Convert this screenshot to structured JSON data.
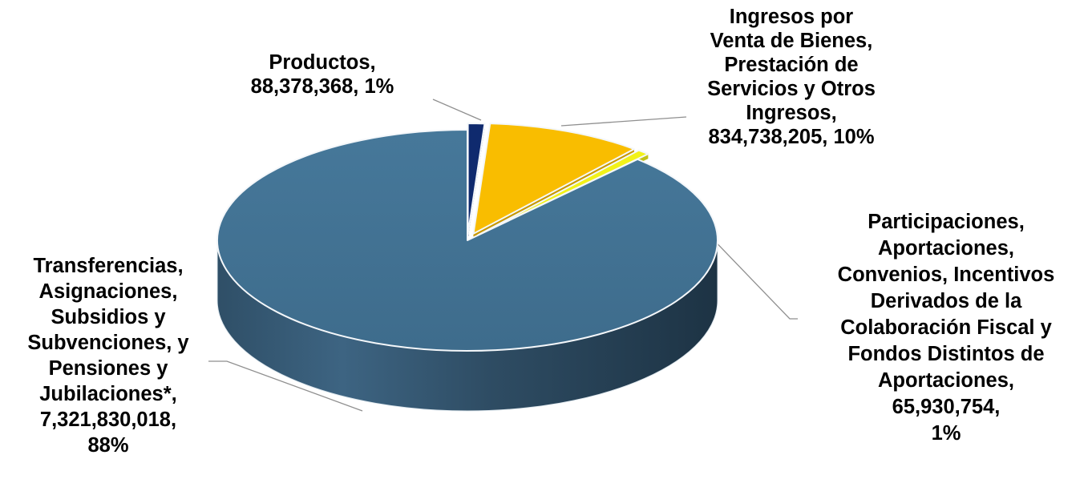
{
  "chart_data": {
    "type": "pie",
    "title": "",
    "slices": [
      {
        "name": "Productos",
        "value": 88378368,
        "percent": 1,
        "color": "#0f2a6e",
        "label_lines": [
          "Productos,",
          "88,378,368, 1%"
        ]
      },
      {
        "name": "Ingresos por Venta de Bienes, Prestación de Servicios y Otros Ingresos",
        "value": 834738205,
        "percent": 10,
        "color": "#f9bd00",
        "label_lines": [
          "Ingresos por",
          "Venta de Bienes,",
          "Prestación de",
          "Servicios y Otros",
          "Ingresos,",
          "834,738,205, 10%"
        ]
      },
      {
        "name": "Participaciones, Aportaciones, Convenios, Incentivos Derivados de la Colaboración Fiscal y Fondos Distintos de Aportaciones",
        "value": 65930754,
        "percent": 1,
        "color": "#f2f219",
        "label_lines": [
          "Participaciones,",
          "Aportaciones,",
          "Convenios, Incentivos",
          "Derivados de la",
          "Colaboración Fiscal y",
          "Fondos Distintos de",
          "Aportaciones,",
          "65,930,754,",
          "1%"
        ]
      },
      {
        "name": "Transferencias, Asignaciones, Subsidios y Subvenciones, y Pensiones y Jubilaciones*",
        "value": 7321830018,
        "percent": 88,
        "color": "#41708f",
        "label_lines": [
          "Transferencias,",
          "Asignaciones,",
          "Subsidios y",
          "Subvenciones, y",
          "Pensiones y",
          "Jubilaciones*,",
          "7,321,830,018,",
          "88%"
        ]
      }
    ]
  }
}
